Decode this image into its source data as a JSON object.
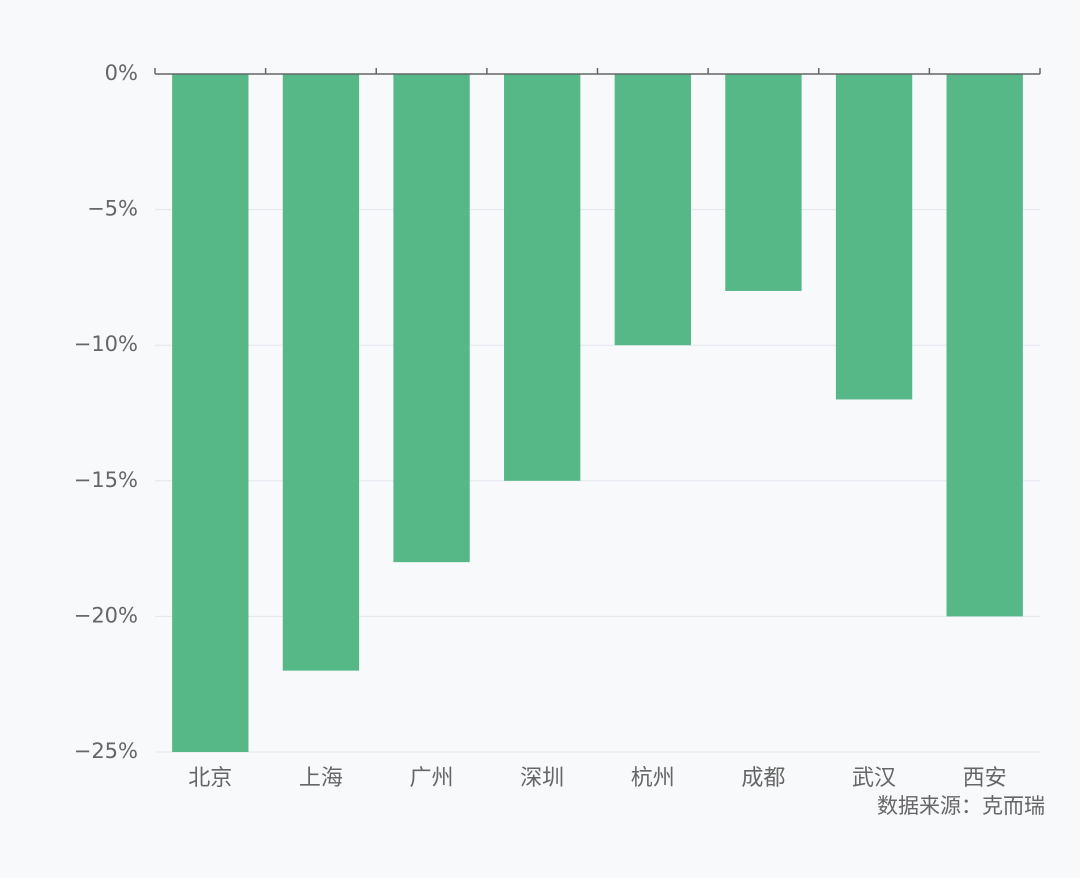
{
  "chart_data": {
    "type": "bar",
    "categories": [
      "北京",
      "上海",
      "广州",
      "深圳",
      "杭州",
      "成都",
      "武汉",
      "西安"
    ],
    "values": [
      -25,
      -22,
      -18,
      -15,
      -10,
      -8,
      -12,
      -20
    ],
    "color": "#56b886",
    "ylim": [
      -25,
      0
    ],
    "yticks": [
      {
        "value": 0,
        "label": "0%"
      },
      {
        "value": -5,
        "label": "−5%"
      },
      {
        "value": -10,
        "label": "−10%"
      },
      {
        "value": -15,
        "label": "−15%"
      },
      {
        "value": -20,
        "label": "−20%"
      },
      {
        "value": -25,
        "label": "−25%"
      }
    ],
    "grid": true,
    "source": "数据来源：克而瑞"
  }
}
